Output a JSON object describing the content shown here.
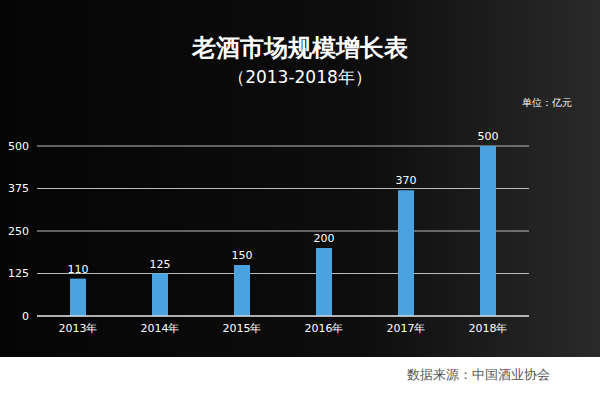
{
  "chart_data": {
    "type": "bar",
    "title": "老酒市场规模增长表",
    "subtitle": "（2013-2018年）",
    "y_label": "单位：亿元",
    "annotations": [
      "数据来源：中国酒业协会"
    ],
    "categories": [
      "2013年",
      "2014年",
      "2015年",
      "2016年",
      "2017年",
      "2018年"
    ],
    "values": [
      110,
      125,
      150,
      200,
      370,
      500
    ],
    "color": "#4aa3df",
    "ylim": [
      0,
      500
    ],
    "yticks": [
      0,
      125,
      250,
      375,
      500
    ],
    "grid": true,
    "data_labels": true
  }
}
